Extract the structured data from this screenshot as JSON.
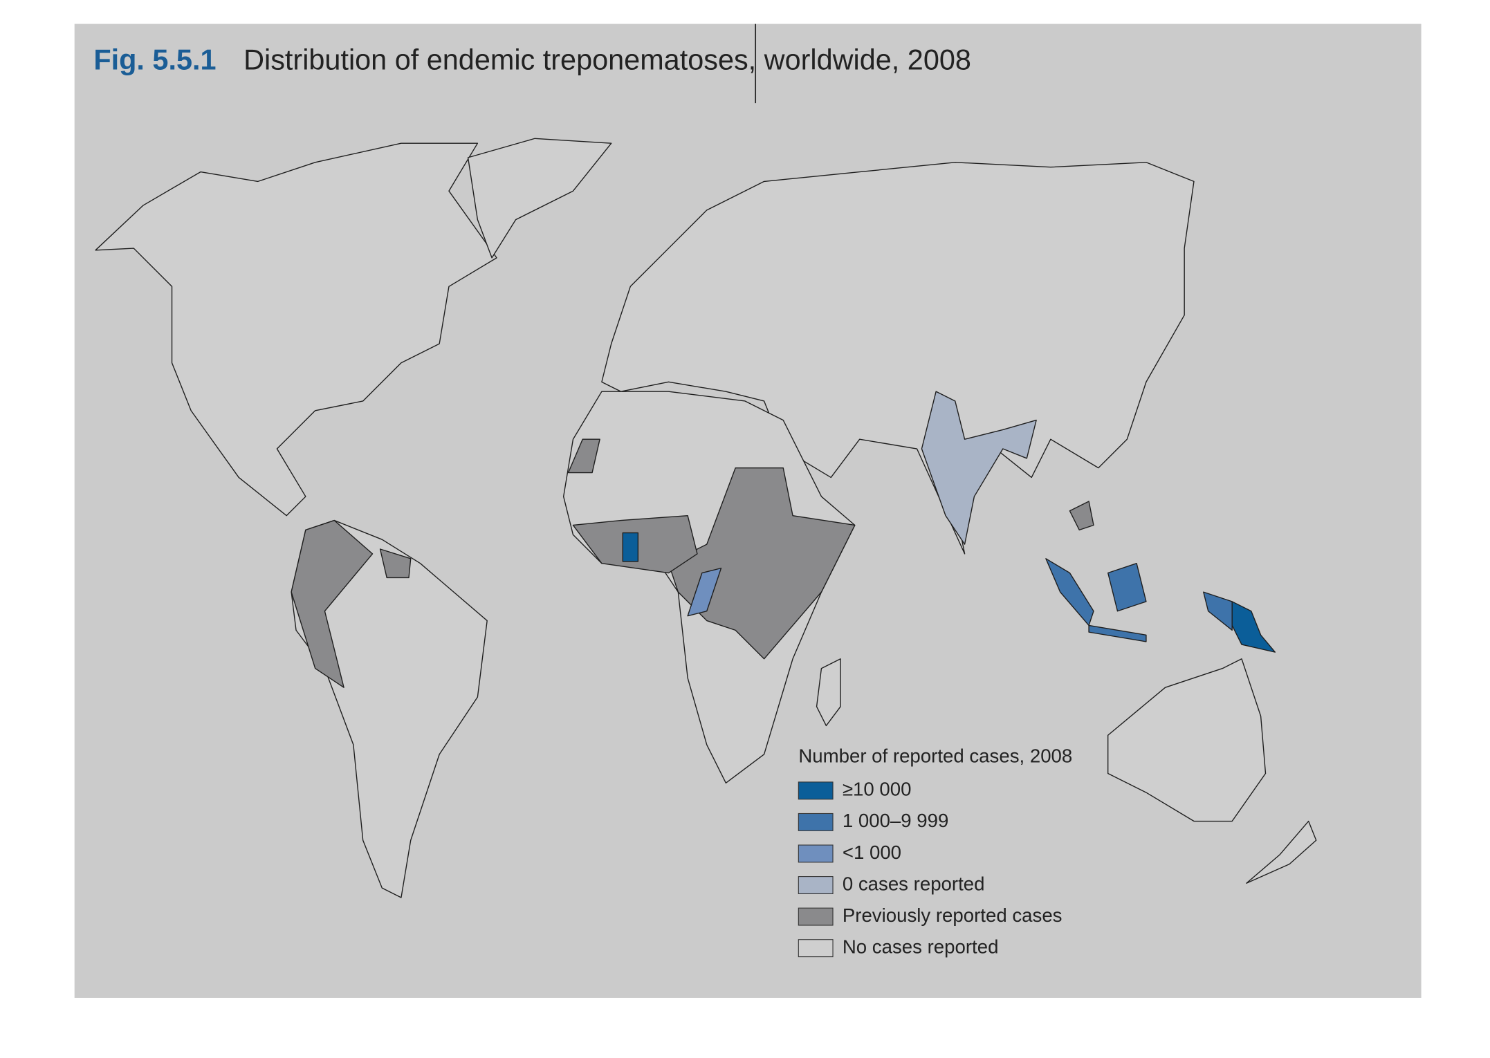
{
  "figure_label": "Fig. 5.5.1",
  "title": "Distribution of endemic treponematoses, worldwide, 2008",
  "legend": {
    "title": "Number of reported cases, 2008",
    "items": [
      {
        "label": "≥10 000",
        "color": "#0b5e99"
      },
      {
        "label": "1 000–9 999",
        "color": "#3e73aa"
      },
      {
        "label": "<1 000",
        "color": "#6f8fbe"
      },
      {
        "label": "0 cases reported",
        "color": "#a9b4c6"
      },
      {
        "label": "Previously reported cases",
        "color": "#8a8a8c"
      },
      {
        "label": "No cases reported",
        "color": "#cfcfcf"
      }
    ]
  }
}
